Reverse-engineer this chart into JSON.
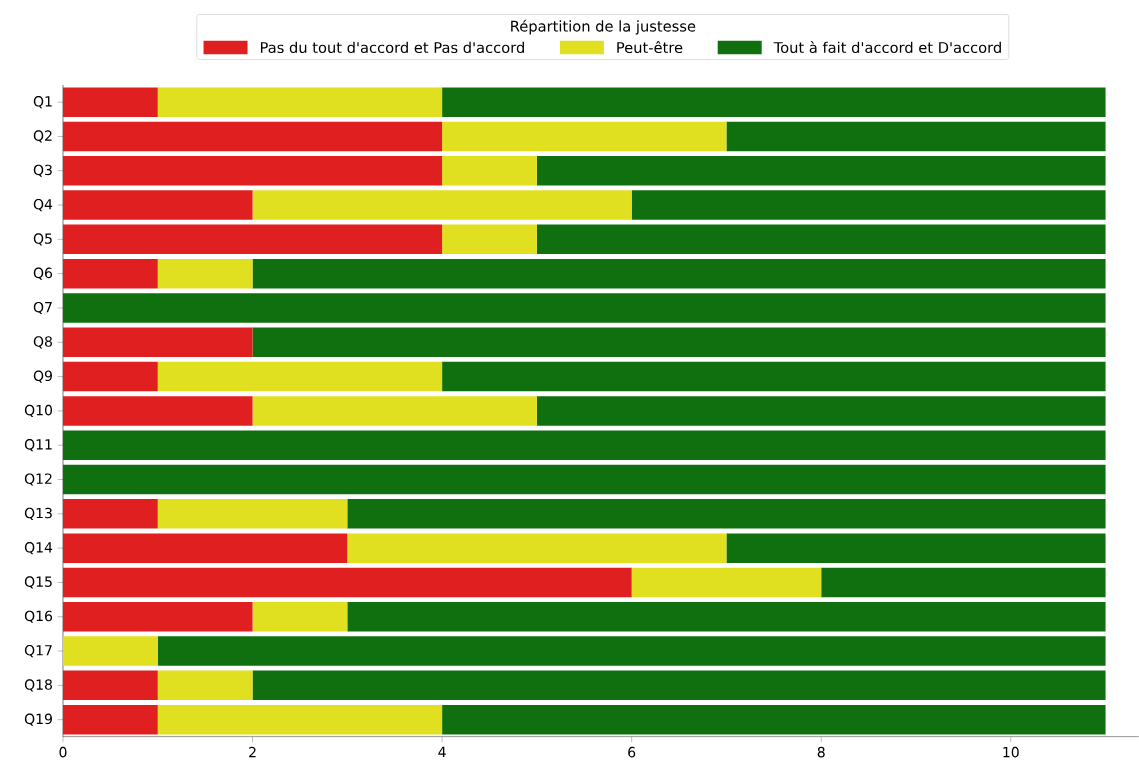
{
  "chart_data": {
    "type": "bar",
    "orientation": "horizontal",
    "stacked": true,
    "legend_title": "Répartition de la justesse",
    "legend": "top",
    "categories": [
      "Q1",
      "Q2",
      "Q3",
      "Q4",
      "Q5",
      "Q6",
      "Q7",
      "Q8",
      "Q9",
      "Q10",
      "Q11",
      "Q12",
      "Q13",
      "Q14",
      "Q15",
      "Q16",
      "Q17",
      "Q18",
      "Q19"
    ],
    "series": [
      {
        "name": "Pas du tout d'accord et Pas d'accord",
        "color": "#e02020",
        "values": [
          1,
          4,
          4,
          2,
          4,
          1,
          0,
          2,
          1,
          2,
          0,
          0,
          1,
          3,
          6,
          2,
          0,
          1,
          1
        ]
      },
      {
        "name": "Peut-être",
        "color": "#e0e020",
        "values": [
          3,
          3,
          1,
          4,
          1,
          1,
          0,
          0,
          3,
          3,
          0,
          0,
          2,
          4,
          2,
          1,
          1,
          1,
          3
        ]
      },
      {
        "name": "Tout à fait d'accord et D'accord",
        "color": "#107010",
        "values": [
          7,
          4,
          6,
          5,
          6,
          9,
          11,
          9,
          7,
          6,
          11,
          11,
          8,
          4,
          3,
          8,
          10,
          9,
          7
        ]
      }
    ],
    "xlim": [
      0,
      11.35
    ],
    "xticks": [
      0,
      2,
      4,
      6,
      8,
      10
    ],
    "grid": false
  }
}
